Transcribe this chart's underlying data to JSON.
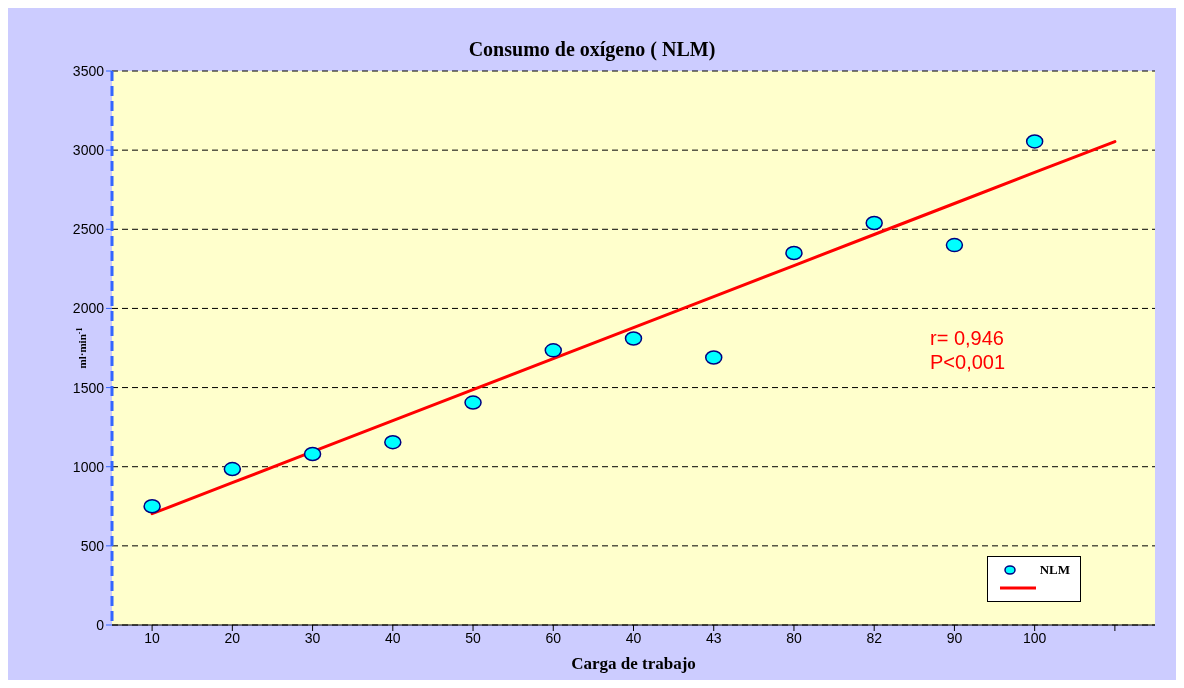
{
  "chart_data": {
    "type": "scatter",
    "title": "Consumo de oxígeno ( NLM)",
    "xlabel": "Carga de trabajo",
    "ylabel": "ml·min$^{-1}$",
    "categories": [
      "10",
      "20",
      "30",
      "40",
      "50",
      "60",
      "40",
      "43",
      "80",
      "82",
      "90",
      "100",
      null
    ],
    "series": [
      {
        "name": "NLM",
        "marker": "circle",
        "color": "#00ffff",
        "values": [
          750,
          985,
          1080,
          1155,
          1405,
          1735,
          1810,
          1690,
          2350,
          2540,
          2400,
          3055,
          null
        ]
      },
      {
        "type": "line",
        "marker": "none",
        "color": "#ff0000",
        "values": [
          703,
          899,
          1095,
          1291,
          1487,
          1683,
          1879,
          2075,
          2271,
          2467,
          2663,
          2859,
          3054
        ]
      }
    ],
    "ylim": [
      0,
      3500
    ],
    "yticks": [
      0,
      500,
      1000,
      1500,
      2000,
      2500,
      3000,
      3500
    ],
    "grid": "y",
    "legend": "bottom right",
    "line_style": "solid",
    "annotations": [
      "r= 0,946",
      "P<0,001"
    ]
  }
}
